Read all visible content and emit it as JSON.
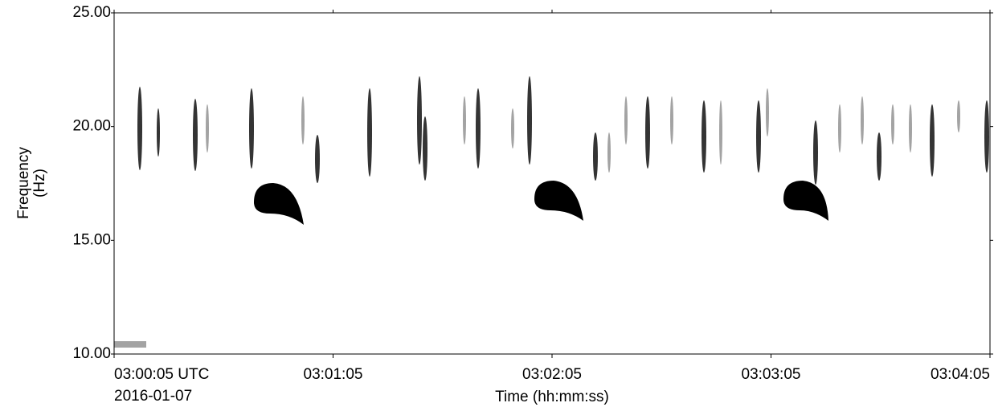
{
  "chart_data": {
    "type": "spectrogram",
    "y_label": [
      "Frequency",
      "(Hz)"
    ],
    "x_label": "Time (hh:mm:ss)",
    "x_date_label": "2016-01-07",
    "xlim": [
      "03:00:05",
      "03:04:05"
    ],
    "xticks": [
      {
        "value": "03:00:05",
        "label": "03:00:05 UTC"
      },
      "03:01:05",
      "03:02:05",
      "03:03:05",
      "03:04:05"
    ],
    "ylim": [
      10,
      25
    ],
    "yticks": [
      {
        "value": 10,
        "label": "10.00"
      },
      {
        "value": 15,
        "label": "15.00"
      },
      {
        "value": 20,
        "label": "20.00"
      },
      {
        "value": 25,
        "label": "25.00"
      }
    ]
  }
}
